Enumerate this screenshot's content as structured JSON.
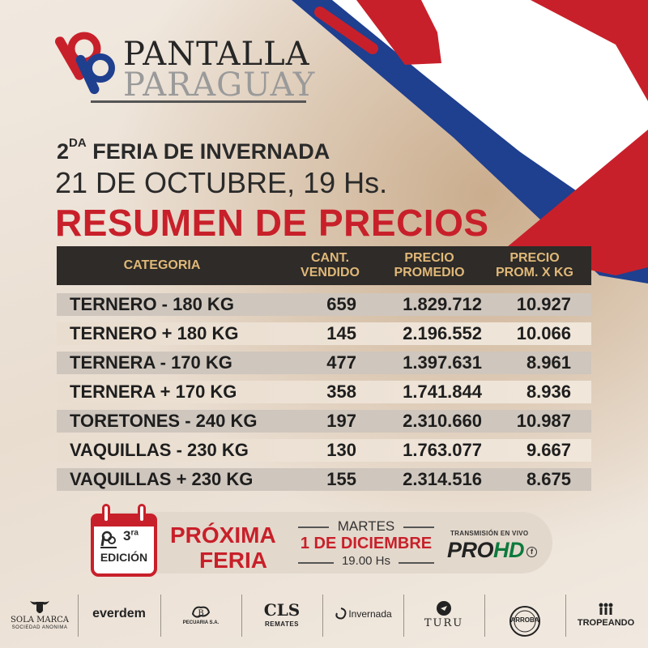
{
  "brand": {
    "line1": "PANTALLA",
    "line2": "PARAGUAY"
  },
  "event": {
    "edition_num": "2",
    "edition_suffix": "DA",
    "name": "FERIA DE INVERNADA",
    "datetime": "21 DE OCTUBRE, 19 Hs.",
    "heading": "RESUMEN DE PRECIOS"
  },
  "table": {
    "headers": {
      "categoria": "CATEGORIA",
      "cant_1": "CANT.",
      "cant_2": "VENDIDO",
      "precio_1": "PRECIO",
      "precio_2": "PROMEDIO",
      "kg_1": "PRECIO",
      "kg_2": "PROM. X KG"
    },
    "rows": [
      {
        "categoria": "TERNERO - 180 KG",
        "cantidad": "659",
        "precio_promedio": "1.829.712",
        "precio_kg": "10.927"
      },
      {
        "categoria": "TERNERO + 180 KG",
        "cantidad": "145",
        "precio_promedio": "2.196.552",
        "precio_kg": "10.066"
      },
      {
        "categoria": "TERNERA - 170 KG",
        "cantidad": "477",
        "precio_promedio": "1.397.631",
        "precio_kg": "8.961"
      },
      {
        "categoria": "TERNERA + 170 KG",
        "cantidad": "358",
        "precio_promedio": "1.741.844",
        "precio_kg": "8.936"
      },
      {
        "categoria": "TORETONES - 240 KG",
        "cantidad": "197",
        "precio_promedio": "2.310.660",
        "precio_kg": "10.987"
      },
      {
        "categoria": "VAQUILLAS - 230 KG",
        "cantidad": "130",
        "precio_promedio": "1.763.077",
        "precio_kg": "9.667"
      },
      {
        "categoria": "VAQUILLAS + 230 KG",
        "cantidad": "155",
        "precio_promedio": "2.314.516",
        "precio_kg": "8.675"
      }
    ]
  },
  "next_fair": {
    "edition_num": "3",
    "edition_suffix": "ra",
    "edition_label": "EDICIÓN",
    "title_1": "PRÓXIMA",
    "title_2": "FERIA",
    "day": "MARTES",
    "date": "1 DE DICIEMBRE",
    "time": "19.00 Hs"
  },
  "stream": {
    "label": "TRANSMISIÓN EN VIVO",
    "brand_a": "PRO",
    "brand_b": "HD"
  },
  "sponsors": [
    {
      "name": "SOLA MARCA",
      "sub": "SOCIEDAD ANONIMA",
      "icon": "bull-head-icon"
    },
    {
      "name": "everdem",
      "sub": "",
      "icon": ""
    },
    {
      "name": "PECUARIA S.A.",
      "sub": "",
      "icon": "bull-brand-icon"
    },
    {
      "name": "CLS",
      "sub": "REMATES",
      "icon": ""
    },
    {
      "name": "Invernada",
      "sub": "",
      "icon": "swirl-icon"
    },
    {
      "name": "TURU",
      "sub": "",
      "icon": "bird-icon"
    },
    {
      "name": "ARROBA",
      "sub": "",
      "icon": "seal-icon"
    },
    {
      "name": "TROPEANDO",
      "sub": "",
      "icon": "riders-icon"
    }
  ],
  "colors": {
    "red": "#c8202a",
    "blue": "#1f3f8f",
    "gold": "#e0b878",
    "dark": "#2e2b28"
  }
}
